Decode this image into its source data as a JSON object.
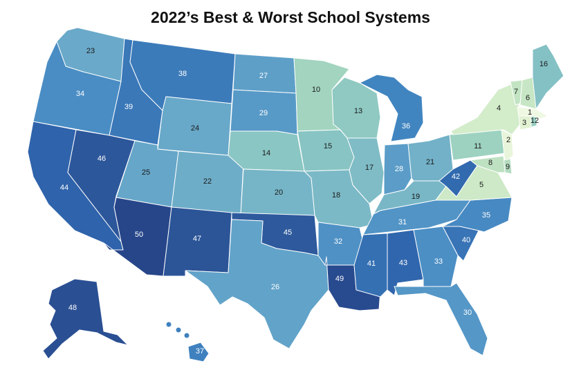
{
  "title": "2022’s Best & Worst School Systems",
  "palette": [
    "#f2f9e6",
    "#d5ecc8",
    "#a7d6c0",
    "#7fbfc8",
    "#5ea3c9",
    "#4387c0",
    "#2f6aae",
    "#27468a"
  ],
  "states": {
    "WA": {
      "rank": 23,
      "color": "#6aa9c9"
    },
    "OR": {
      "rank": 34,
      "color": "#4a8dc4"
    },
    "CA": {
      "rank": 44,
      "color": "#2f63ab"
    },
    "ID": {
      "rank": 39,
      "color": "#3a78b8"
    },
    "NV": {
      "rank": 46,
      "color": "#2d579b"
    },
    "MT": {
      "rank": 38,
      "color": "#3c7bba"
    },
    "WY": {
      "rank": 24,
      "color": "#68a8c9"
    },
    "UT": {
      "rank": 25,
      "color": "#66a6c9"
    },
    "AZ": {
      "rank": 50,
      "color": "#27468a"
    },
    "CO": {
      "rank": 22,
      "color": "#6eadc8"
    },
    "NM": {
      "rank": 47,
      "color": "#2c5598"
    },
    "ND": {
      "rank": 27,
      "color": "#5e9fc8"
    },
    "SD": {
      "rank": 29,
      "color": "#589ac7"
    },
    "NE": {
      "rank": 14,
      "color": "#8ac6c3"
    },
    "KS": {
      "rank": 20,
      "color": "#76b5c7"
    },
    "OK": {
      "rank": 45,
      "color": "#2e5a9d"
    },
    "TX": {
      "rank": 26,
      "color": "#62a3c9"
    },
    "MN": {
      "rank": 10,
      "color": "#a2d4bf"
    },
    "IA": {
      "rank": 15,
      "color": "#88c4c4"
    },
    "MO": {
      "rank": 18,
      "color": "#7cb9c6"
    },
    "AR": {
      "rank": 32,
      "color": "#4f91c5"
    },
    "LA": {
      "rank": 49,
      "color": "#284a8f"
    },
    "WI": {
      "rank": 13,
      "color": "#8fc9c2"
    },
    "IL": {
      "rank": 17,
      "color": "#7fbcc6"
    },
    "MI": {
      "rank": 36,
      "color": "#4185c0"
    },
    "IN": {
      "rank": 28,
      "color": "#5b9dc8"
    },
    "OH": {
      "rank": 21,
      "color": "#72b1c8"
    },
    "KY": {
      "rank": 19,
      "color": "#79b7c7"
    },
    "TN": {
      "rank": 31,
      "color": "#5294c6"
    },
    "MS": {
      "rank": 41,
      "color": "#3570b3"
    },
    "AL": {
      "rank": 43,
      "color": "#3066ad"
    },
    "GA": {
      "rank": 33,
      "color": "#4c8fc5"
    },
    "FL": {
      "rank": 30,
      "color": "#5597c7"
    },
    "SC": {
      "rank": 40,
      "color": "#3874b6"
    },
    "NC": {
      "rank": 35,
      "color": "#4789c2"
    },
    "WV": {
      "rank": 42,
      "color": "#316aae"
    },
    "VA": {
      "rank": 5,
      "color": "#cde9c7"
    },
    "PA": {
      "rank": 11,
      "color": "#9dd2c0"
    },
    "NY": {
      "rank": 4,
      "color": "#d3ecca"
    },
    "ME": {
      "rank": 16,
      "color": "#84c1c5"
    },
    "VT": {
      "rank": 7,
      "color": "#c2e4c3"
    },
    "NH": {
      "rank": 6,
      "color": "#c7e6c5"
    },
    "MA": {
      "rank": 1,
      "color": "#eef8e2"
    },
    "CT": {
      "rank": 3,
      "color": "#e2f2d3"
    },
    "RI": {
      "rank": 12,
      "color": "#98cfc1"
    },
    "NJ": {
      "rank": 2,
      "color": "#e8f5da"
    },
    "DE": {
      "rank": 9,
      "color": "#b4dcc0"
    },
    "MD": {
      "rank": 8,
      "color": "#bde1c1"
    },
    "AK": {
      "rank": 48,
      "color": "#2a4f93"
    },
    "HI": {
      "rank": 37,
      "color": "#3f81be"
    }
  }
}
